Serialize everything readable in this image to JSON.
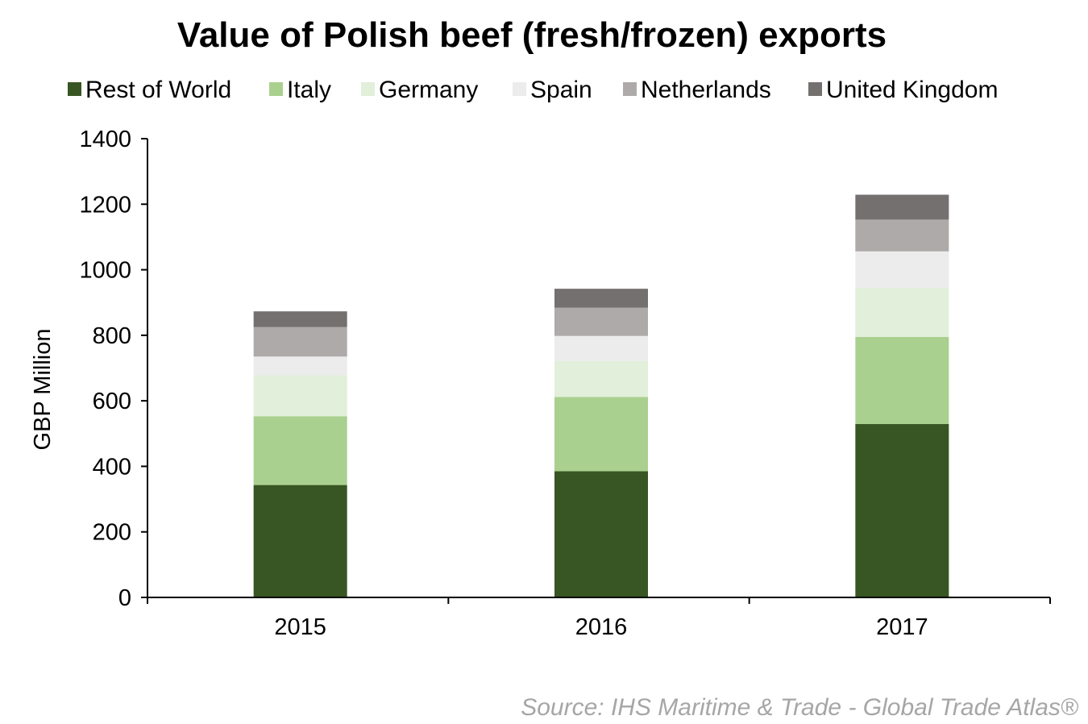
{
  "chart_data": {
    "type": "bar",
    "stacked": true,
    "title": "Value of Polish beef (fresh/frozen) exports",
    "ylabel": "GBP Million",
    "xlabel": "",
    "categories": [
      "2015",
      "2016",
      "2017"
    ],
    "ylim": [
      0,
      1400
    ],
    "yticks": [
      0,
      200,
      400,
      600,
      800,
      1000,
      1200,
      1400
    ],
    "grid": false,
    "legend": "top",
    "series": [
      {
        "name": "Rest of World",
        "color": "#375623",
        "values": [
          343,
          385,
          529
        ]
      },
      {
        "name": "Italy",
        "color": "#a9d08e",
        "values": [
          210,
          227,
          266
        ]
      },
      {
        "name": "Germany",
        "color": "#e2efda",
        "values": [
          125,
          110,
          150
        ]
      },
      {
        "name": "Spain",
        "color": "#ececec",
        "values": [
          57,
          76,
          111
        ]
      },
      {
        "name": "Netherlands",
        "color": "#aeaaaa",
        "values": [
          90,
          86,
          97
        ]
      },
      {
        "name": "United Kingdom",
        "color": "#747070",
        "values": [
          48,
          58,
          76
        ]
      }
    ],
    "source": "Source: IHS Maritime & Trade - Global Trade Atlas®"
  }
}
